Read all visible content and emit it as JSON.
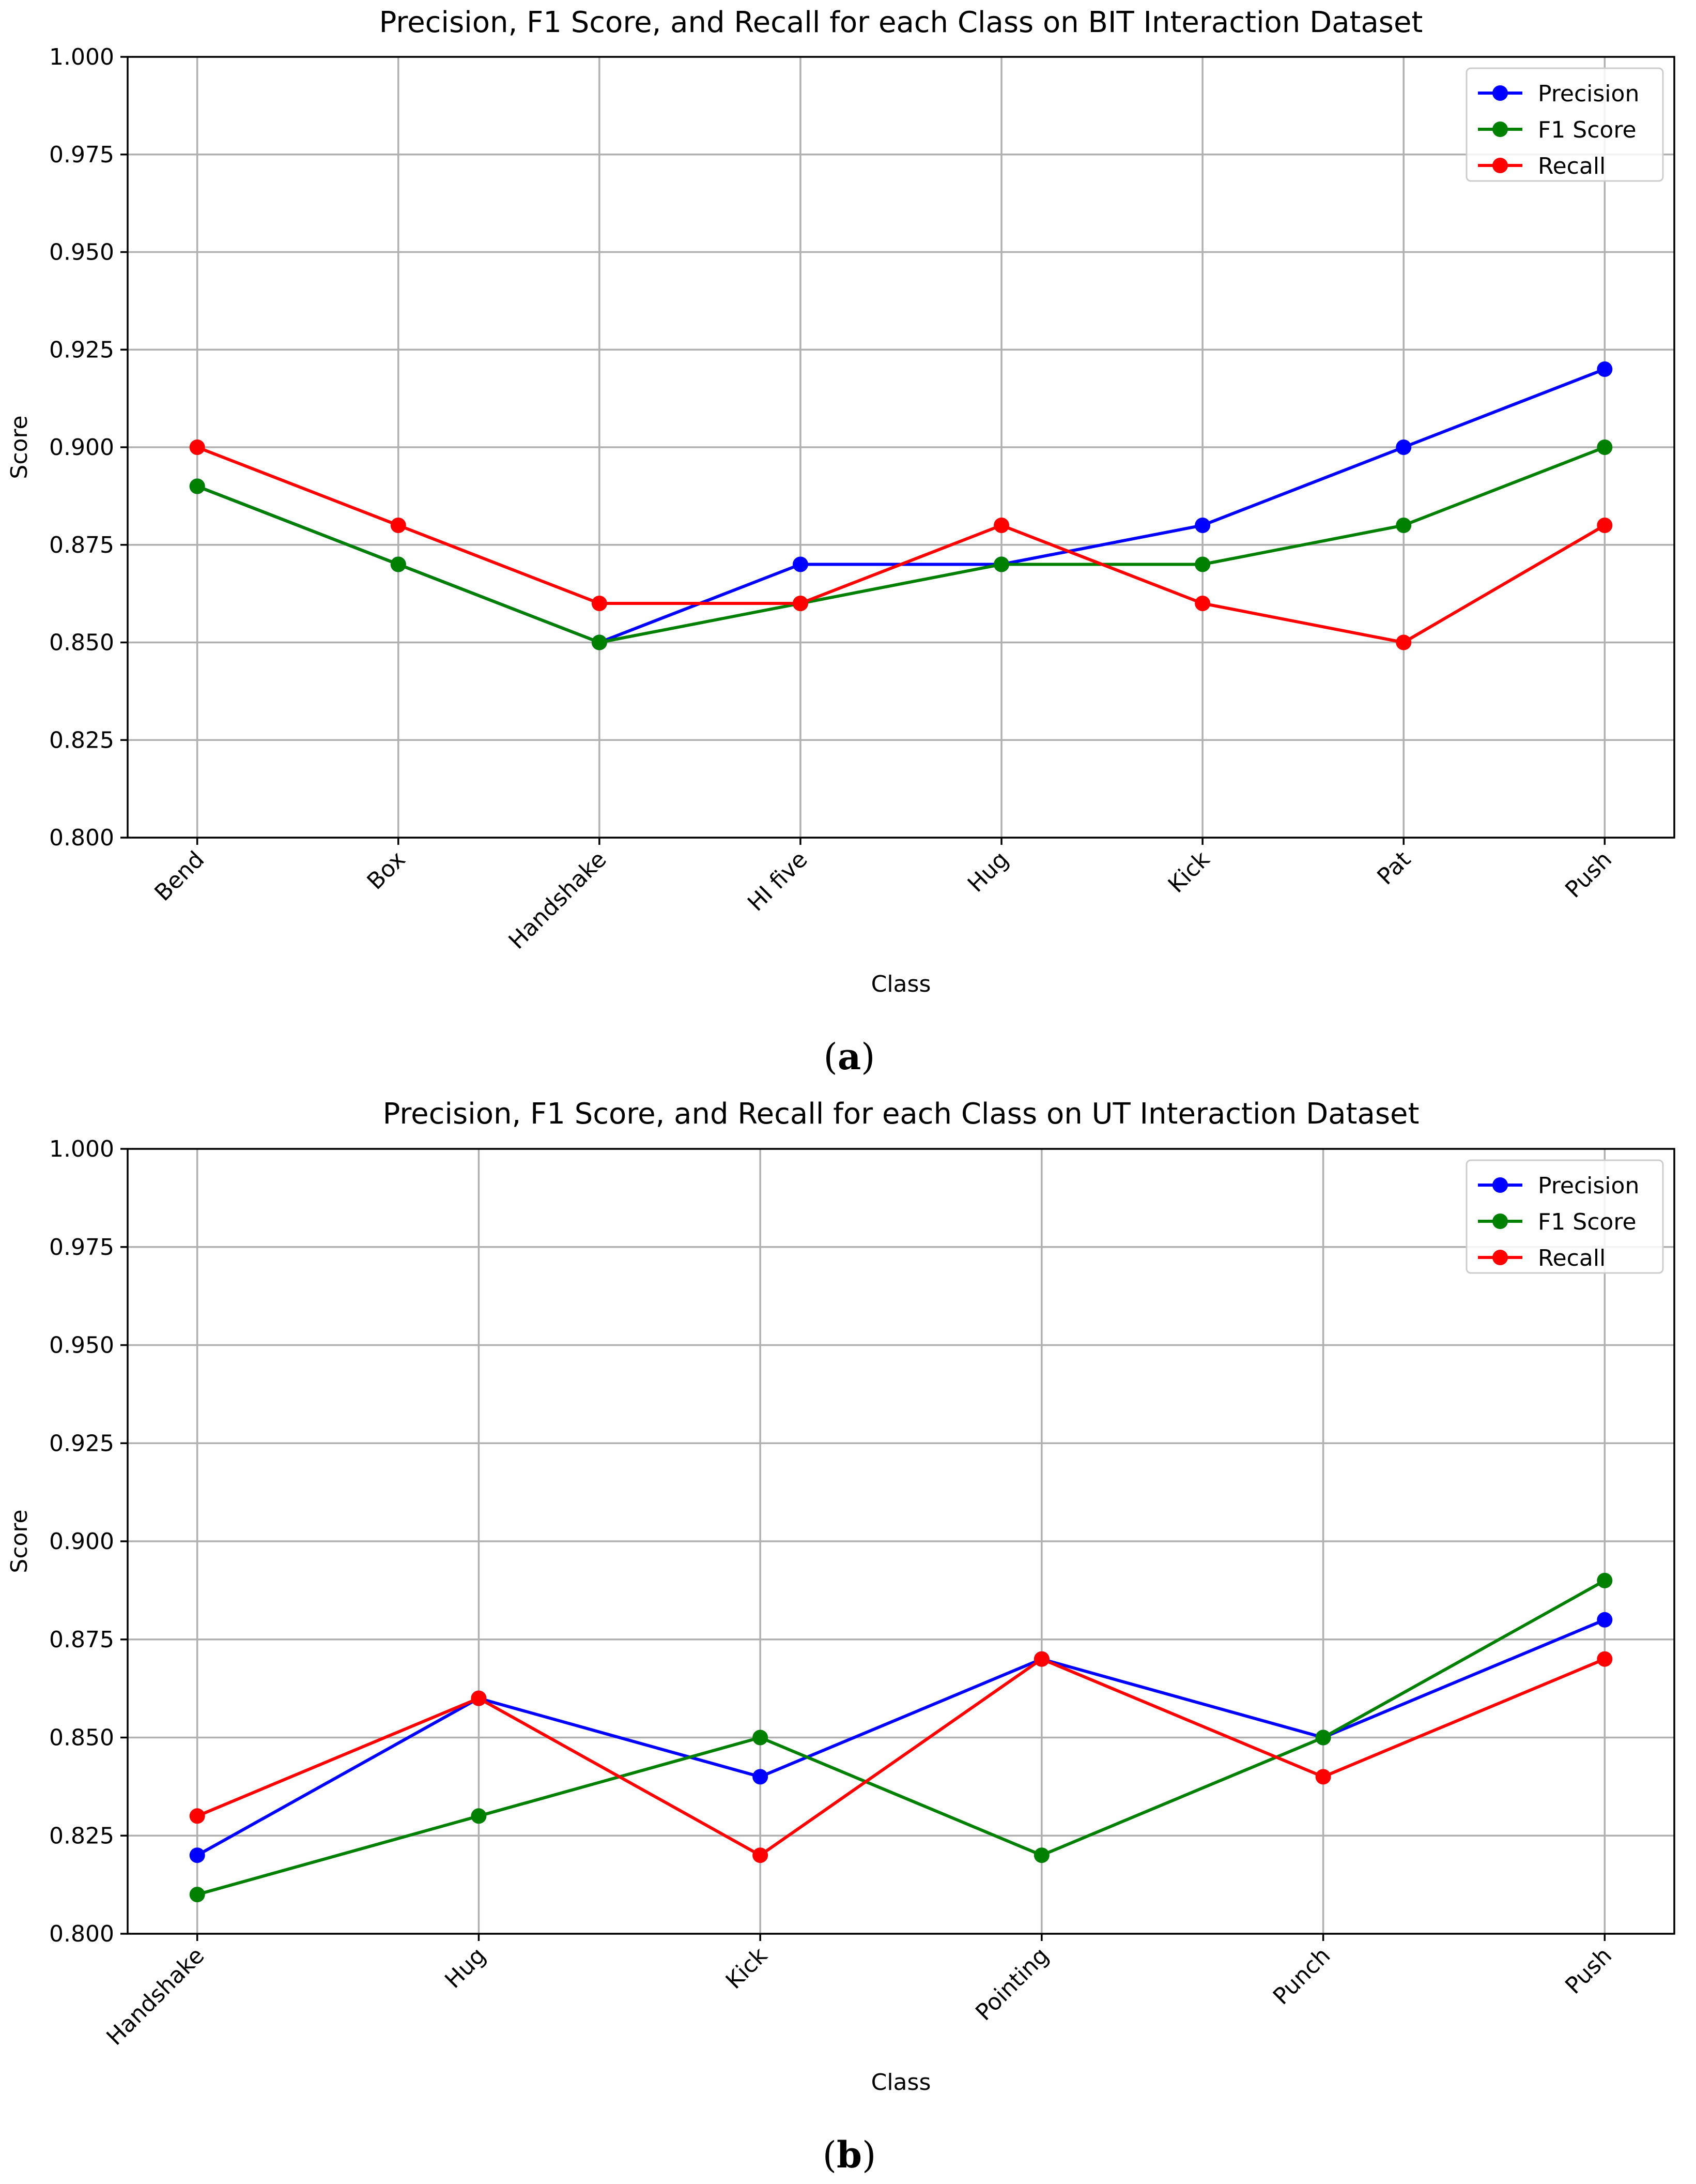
{
  "chart_data": [
    {
      "type": "line",
      "title": "Precision, F1 Score, and Recall for each Class on BIT Interaction Dataset",
      "xlabel": "Class",
      "ylabel": "Score",
      "ylim": [
        0.8,
        1.0
      ],
      "yticks": [
        "0.800",
        "0.825",
        "0.850",
        "0.875",
        "0.900",
        "0.925",
        "0.950",
        "0.975",
        "1.000"
      ],
      "grid": true,
      "legend_position": "top-right",
      "categories": [
        "Bend",
        "Box",
        "Handshake",
        "HI five",
        "Hug",
        "Kick",
        "Pat",
        "Push"
      ],
      "series": [
        {
          "name": "Precision",
          "color": "#0000ff",
          "values": [
            0.89,
            0.87,
            0.85,
            0.87,
            0.87,
            0.88,
            0.9,
            0.92
          ]
        },
        {
          "name": "F1 Score",
          "color": "#008000",
          "values": [
            0.89,
            0.87,
            0.85,
            0.86,
            0.87,
            0.87,
            0.88,
            0.9
          ]
        },
        {
          "name": "Recall",
          "color": "#ff0000",
          "values": [
            0.9,
            0.88,
            0.86,
            0.86,
            0.88,
            0.86,
            0.85,
            0.88
          ]
        }
      ],
      "caption_letter": "a"
    },
    {
      "type": "line",
      "title": "Precision, F1 Score, and Recall for each Class on UT Interaction Dataset",
      "xlabel": "Class",
      "ylabel": "Score",
      "ylim": [
        0.8,
        1.0
      ],
      "yticks": [
        "0.800",
        "0.825",
        "0.850",
        "0.875",
        "0.900",
        "0.925",
        "0.950",
        "0.975",
        "1.000"
      ],
      "grid": true,
      "legend_position": "top-right",
      "categories": [
        "Handshake",
        "Hug",
        "Kick",
        "Pointing",
        "Punch",
        "Push"
      ],
      "series": [
        {
          "name": "Precision",
          "color": "#0000ff",
          "values": [
            0.82,
            0.86,
            0.84,
            0.87,
            0.85,
            0.88
          ]
        },
        {
          "name": "F1 Score",
          "color": "#008000",
          "values": [
            0.81,
            0.83,
            0.85,
            0.82,
            0.85,
            0.89
          ]
        },
        {
          "name": "Recall",
          "color": "#ff0000",
          "values": [
            0.83,
            0.86,
            0.82,
            0.87,
            0.84,
            0.87
          ]
        }
      ],
      "caption_letter": "b"
    }
  ]
}
